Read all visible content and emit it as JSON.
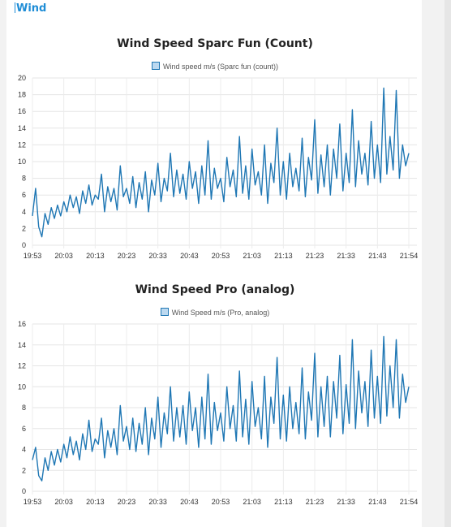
{
  "section": {
    "title": "Wind"
  },
  "chart_data": [
    {
      "type": "line",
      "title": "Wind Speed Sparc Fun (Count)",
      "legend": "Wind speed m/s (Sparc fun (count))",
      "color": "#1f77b4",
      "ylim": [
        0,
        20
      ],
      "yticks": [
        0,
        2,
        4,
        6,
        8,
        10,
        12,
        14,
        16,
        18,
        20
      ],
      "xticks": [
        "19:53",
        "20:03",
        "20:13",
        "20:23",
        "20:33",
        "20:43",
        "20:53",
        "21:03",
        "21:13",
        "21:23",
        "21:33",
        "21:43",
        "21:54"
      ],
      "series": [
        {
          "values": [
            3.5,
            6.8,
            2.2,
            1.0,
            3.8,
            2.5,
            4.5,
            3.2,
            4.8,
            3.5,
            5.2,
            4.0,
            6.0,
            4.5,
            5.8,
            3.8,
            6.5,
            5.0,
            7.2,
            4.8,
            6.0,
            5.5,
            8.5,
            4.0,
            7.0,
            5.2,
            6.8,
            4.2,
            9.5,
            5.8,
            6.8,
            5.0,
            8.2,
            4.5,
            7.5,
            5.5,
            8.8,
            4.0,
            7.8,
            6.0,
            9.8,
            5.2,
            8.0,
            6.5,
            11.0,
            5.8,
            9.0,
            6.2,
            8.5,
            5.5,
            10.0,
            6.8,
            8.8,
            5.0,
            9.5,
            6.0,
            12.5,
            5.5,
            9.2,
            6.8,
            8.0,
            5.2,
            10.5,
            7.0,
            9.0,
            5.8,
            13.0,
            6.2,
            9.5,
            5.5,
            11.5,
            7.2,
            8.8,
            6.0,
            12.0,
            5.0,
            9.8,
            7.5,
            14.0,
            6.0,
            10.0,
            5.5,
            11.0,
            7.0,
            9.2,
            6.5,
            12.8,
            5.8,
            10.5,
            7.8,
            15.0,
            6.2,
            10.8,
            7.0,
            12.0,
            6.0,
            11.5,
            8.0,
            14.5,
            6.5,
            11.0,
            7.5,
            16.2,
            7.0,
            12.5,
            8.5,
            11.0,
            7.2,
            14.8,
            8.0,
            12.0,
            7.5,
            18.8,
            8.5,
            13.0,
            9.0,
            18.5,
            8.0,
            12.0,
            9.5,
            11.0
          ]
        }
      ]
    },
    {
      "type": "line",
      "title": "Wind Speed Pro (analog)",
      "legend": "Wind Speed m/s (Pro, analog)",
      "color": "#1f77b4",
      "ylim": [
        0,
        16
      ],
      "yticks": [
        0,
        2,
        4,
        6,
        8,
        10,
        12,
        14,
        16
      ],
      "xticks": [
        "19:53",
        "20:03",
        "20:13",
        "20:23",
        "20:33",
        "20:43",
        "20:53",
        "21:03",
        "21:13",
        "21:23",
        "21:33",
        "21:43",
        "21:54"
      ],
      "series": [
        {
          "values": [
            3.0,
            4.2,
            1.5,
            1.0,
            3.2,
            2.0,
            3.8,
            2.5,
            4.0,
            2.8,
            4.5,
            3.2,
            5.2,
            3.5,
            4.8,
            3.0,
            5.5,
            4.0,
            6.8,
            3.8,
            5.0,
            4.5,
            7.0,
            3.2,
            5.8,
            4.2,
            6.0,
            3.5,
            8.2,
            4.8,
            6.2,
            4.0,
            7.0,
            3.8,
            6.5,
            4.5,
            8.0,
            3.5,
            7.0,
            5.0,
            9.0,
            4.2,
            7.5,
            5.5,
            10.0,
            4.8,
            8.0,
            5.2,
            8.2,
            4.5,
            9.5,
            5.8,
            8.0,
            4.2,
            9.0,
            5.0,
            11.2,
            4.5,
            8.5,
            5.8,
            7.5,
            4.8,
            10.0,
            6.0,
            8.2,
            4.8,
            11.5,
            5.2,
            8.8,
            4.5,
            10.5,
            6.2,
            8.0,
            5.0,
            11.0,
            4.2,
            9.0,
            6.5,
            12.8,
            5.0,
            9.2,
            4.8,
            10.0,
            6.0,
            8.5,
            5.5,
            11.8,
            5.0,
            9.5,
            6.8,
            13.2,
            5.2,
            10.0,
            6.2,
            11.0,
            5.2,
            10.5,
            7.0,
            13.0,
            5.5,
            10.2,
            6.5,
            14.5,
            6.0,
            11.5,
            7.5,
            10.5,
            6.2,
            13.5,
            7.0,
            11.0,
            6.5,
            14.8,
            7.2,
            12.0,
            8.0,
            14.5,
            7.0,
            11.2,
            8.5,
            10.0
          ]
        }
      ]
    }
  ]
}
